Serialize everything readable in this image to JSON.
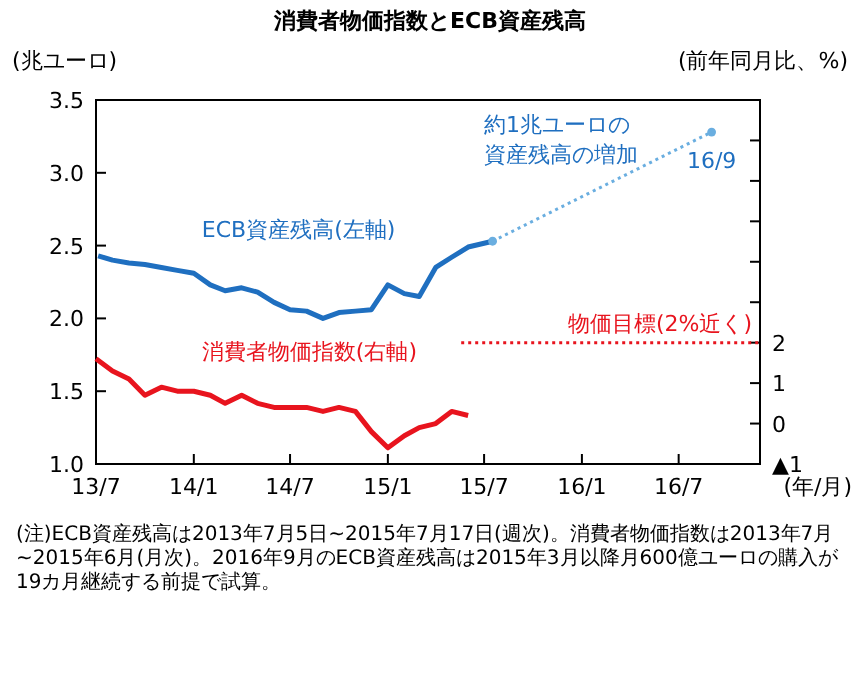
{
  "chart_data": {
    "type": "line",
    "title": "消費者物価指数とECB資産残高",
    "ylabel": "(兆ユーロ)",
    "y2label": "(前年同月比、%)",
    "xlabel": "(年/月)",
    "xlim": [
      "2013-07",
      "2016-12"
    ],
    "xticks": [
      {
        "value": "2013-07",
        "label": "13/7"
      },
      {
        "value": "2014-01",
        "label": "14/1"
      },
      {
        "value": "2014-07",
        "label": "14/7"
      },
      {
        "value": "2015-01",
        "label": "15/1"
      },
      {
        "value": "2015-07",
        "label": "15/7"
      },
      {
        "value": "2016-01",
        "label": "16/1"
      },
      {
        "value": "2016-07",
        "label": "16/7"
      }
    ],
    "ylim": [
      1.0,
      3.5
    ],
    "yticks": [
      {
        "value": 1.0,
        "label": "1.0"
      },
      {
        "value": 1.5,
        "label": "1.5"
      },
      {
        "value": 2.0,
        "label": "2.0"
      },
      {
        "value": 2.5,
        "label": "2.5"
      },
      {
        "value": 3.0,
        "label": "3.0"
      },
      {
        "value": 3.5,
        "label": "3.5"
      }
    ],
    "y2lim": [
      -1,
      8
    ],
    "y2ticks": [
      {
        "value": -1,
        "label": "▲1"
      },
      0,
      1,
      2,
      {
        "value": 3,
        "label": null
      },
      {
        "value": 4,
        "label": null
      },
      {
        "value": 5,
        "label": null
      },
      {
        "value": 6,
        "label": null
      },
      {
        "value": 7,
        "label": null
      }
    ],
    "series": [
      {
        "name": "ECB資産残高(左軸)",
        "color": "#1f6fc0",
        "x": [
          "2013-07-05",
          "2013-08",
          "2013-09",
          "2013-10",
          "2013-11",
          "2013-12",
          "2014-01",
          "2014-02",
          "2014-03",
          "2014-04",
          "2014-05",
          "2014-06",
          "2014-07",
          "2014-08",
          "2014-09",
          "2014-10",
          "2014-11",
          "2014-12",
          "2015-01",
          "2015-02",
          "2015-03",
          "2015-04",
          "2015-05",
          "2015-06",
          "2015-07-17"
        ],
        "values": [
          2.43,
          2.4,
          2.38,
          2.37,
          2.35,
          2.33,
          2.31,
          2.23,
          2.19,
          2.21,
          2.18,
          2.11,
          2.06,
          2.05,
          2.0,
          2.04,
          2.05,
          2.06,
          2.23,
          2.17,
          2.15,
          2.35,
          2.42,
          2.49,
          2.53
        ]
      },
      {
        "color": "#6aaee0",
        "line_style": "dotted",
        "marker": "circle",
        "x": [
          "2015-07-17",
          "2016-09"
        ],
        "values": [
          2.53,
          3.28
        ]
      },
      {
        "name": "消費者物価指数(右軸)",
        "color": "#e8141e",
        "axis": "y2",
        "x": [
          "2013-07",
          "2013-08",
          "2013-09",
          "2013-10",
          "2013-11",
          "2013-12",
          "2014-01",
          "2014-02",
          "2014-03",
          "2014-04",
          "2014-05",
          "2014-06",
          "2014-07",
          "2014-08",
          "2014-09",
          "2014-10",
          "2014-11",
          "2014-12",
          "2015-01",
          "2015-02",
          "2015-03",
          "2015-04",
          "2015-05",
          "2015-06"
        ],
        "values": [
          1.6,
          1.3,
          1.1,
          0.7,
          0.9,
          0.8,
          0.8,
          0.7,
          0.5,
          0.7,
          0.5,
          0.4,
          0.4,
          0.4,
          0.3,
          0.4,
          0.3,
          -0.2,
          -0.6,
          -0.3,
          -0.1,
          0.0,
          0.3,
          0.2
        ]
      }
    ],
    "ref_lines": [
      {
        "axis": "y2",
        "value": 2,
        "label": "物価目標(2%近く)",
        "color": "#e8141e",
        "line_style": "dotted"
      }
    ],
    "annotations": [
      "約1兆ユーロの資産残高の増加",
      {
        "text": "16/9",
        "x": "2016-09",
        "y": 3.28
      },
      "(注)ECB資産残高は2013年7月5日~2015年7月17日(週次)。消費者物価指数は2013年7月~2015年6月(月次)。2016年9月のECB資産残高は2015年3月以降月600億ユーロの購入が19カ月継続する前提で試算。"
    ]
  }
}
